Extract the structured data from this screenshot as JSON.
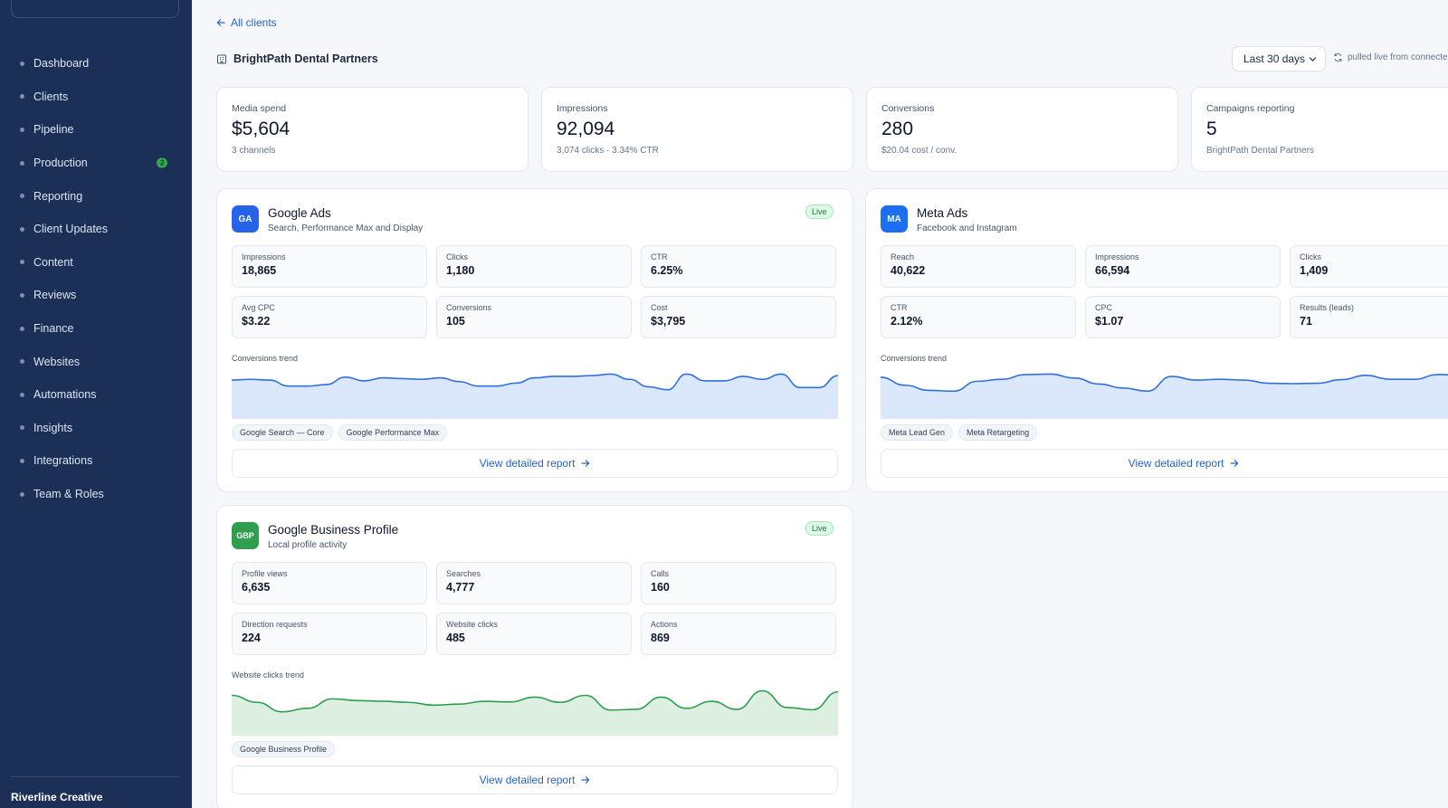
{
  "sidebar": {
    "items": [
      {
        "label": "Dashboard"
      },
      {
        "label": "Clients"
      },
      {
        "label": "Pipeline"
      },
      {
        "label": "Production",
        "badge": "2"
      },
      {
        "label": "Reporting"
      },
      {
        "label": "Client Updates"
      },
      {
        "label": "Content"
      },
      {
        "label": "Reviews"
      },
      {
        "label": "Finance"
      },
      {
        "label": "Websites"
      },
      {
        "label": "Automations"
      },
      {
        "label": "Insights"
      },
      {
        "label": "Integrations"
      },
      {
        "label": "Team & Roles"
      }
    ],
    "org_name": "Riverline Creative"
  },
  "header": {
    "back_label": "All clients",
    "client_name": "BrightPath Dental Partners",
    "date_range": "Last 30 days",
    "status_text": "pulled live from connected"
  },
  "kpis": [
    {
      "label": "Media spend",
      "value": "$5,604",
      "sub": "3 channels"
    },
    {
      "label": "Impressions",
      "value": "92,094",
      "sub": "3,074 clicks · 3.34% CTR"
    },
    {
      "label": "Conversions",
      "value": "280",
      "sub": "$20.04 cost / conv."
    },
    {
      "label": "Campaigns reporting",
      "value": "5",
      "sub": "BrightPath Dental Partners"
    }
  ],
  "cards": {
    "google_ads": {
      "logo": "GA",
      "title": "Google Ads",
      "subtitle": "Search, Performance Max and Display",
      "status": "Live",
      "metrics": [
        {
          "label": "Impressions",
          "value": "18,865"
        },
        {
          "label": "Clicks",
          "value": "1,180"
        },
        {
          "label": "CTR",
          "value": "6.25%"
        },
        {
          "label": "Avg CPC",
          "value": "$3.22"
        },
        {
          "label": "Conversions",
          "value": "105"
        },
        {
          "label": "Cost",
          "value": "$3,795"
        }
      ],
      "trend_label": "Conversions trend",
      "trend_values": [
        5.2,
        5.3,
        5.2,
        4.4,
        4.4,
        4.6,
        5.6,
        5.1,
        5.5,
        5.4,
        5.3,
        5.5,
        5.0,
        4.4,
        4.4,
        4.8,
        5.5,
        5.7,
        5.7,
        5.8,
        6.0,
        5.3,
        4.3,
        3.9,
        6.0,
        5.1,
        5.1,
        5.7,
        5.3,
        6.0,
        4.2,
        4.2,
        5.8
      ],
      "tags": [
        "Google Search — Core",
        "Google Performance Max"
      ],
      "report_label": "View detailed report",
      "accent": "#2f6fde",
      "fill": "#dbe8fc"
    },
    "meta_ads": {
      "logo": "MA",
      "title": "Meta Ads",
      "subtitle": "Facebook and Instagram",
      "metrics": [
        {
          "label": "Reach",
          "value": "40,622"
        },
        {
          "label": "Impressions",
          "value": "66,594"
        },
        {
          "label": "Clicks",
          "value": "1,409"
        },
        {
          "label": "CTR",
          "value": "2.12%"
        },
        {
          "label": "CPC",
          "value": "$1.07"
        },
        {
          "label": "Results (leads)",
          "value": "71"
        }
      ],
      "trend_label": "Conversions trend",
      "trend_values": [
        10.5,
        8.5,
        7.2,
        7.0,
        9.5,
        10.0,
        11.2,
        11.3,
        10.3,
        8.8,
        7.8,
        7.0,
        10.7,
        9.8,
        10.0,
        9.8,
        9.0,
        8.9,
        9.0,
        9.9,
        11.0,
        10.0,
        10.0,
        11.2,
        11.0,
        7.0
      ],
      "tags": [
        "Meta Lead Gen",
        "Meta Retargeting"
      ],
      "report_label": "View detailed report",
      "accent": "#2f6fde",
      "fill": "#dbe8fc"
    },
    "gbp": {
      "logo": "GBP",
      "title": "Google Business Profile",
      "subtitle": "Local profile activity",
      "status": "Live",
      "metrics": [
        {
          "label": "Profile views",
          "value": "6,635"
        },
        {
          "label": "Searches",
          "value": "4,777"
        },
        {
          "label": "Calls",
          "value": "160"
        },
        {
          "label": "Direction requests",
          "value": "224"
        },
        {
          "label": "Website clicks",
          "value": "485"
        },
        {
          "label": "Actions",
          "value": "869"
        }
      ],
      "trend_label": "Website clicks trend",
      "trend_values": [
        11.5,
        9.5,
        6.8,
        7.8,
        10.5,
        10.0,
        9.8,
        9.5,
        8.7,
        9.0,
        9.8,
        9.6,
        11.0,
        9.5,
        11.5,
        7.3,
        7.5,
        11.0,
        7.8,
        9.8,
        7.5,
        12.8,
        8.0,
        7.4,
        12.5
      ],
      "tags": [
        "Google Business Profile"
      ],
      "report_label": "View detailed report",
      "accent": "#2f9e4f",
      "fill": "#dcefe0"
    }
  },
  "colors": {
    "sidebar_bg": "#1b2f57",
    "accent_blue": "#2563c9",
    "live_green": "#dcfce7"
  }
}
